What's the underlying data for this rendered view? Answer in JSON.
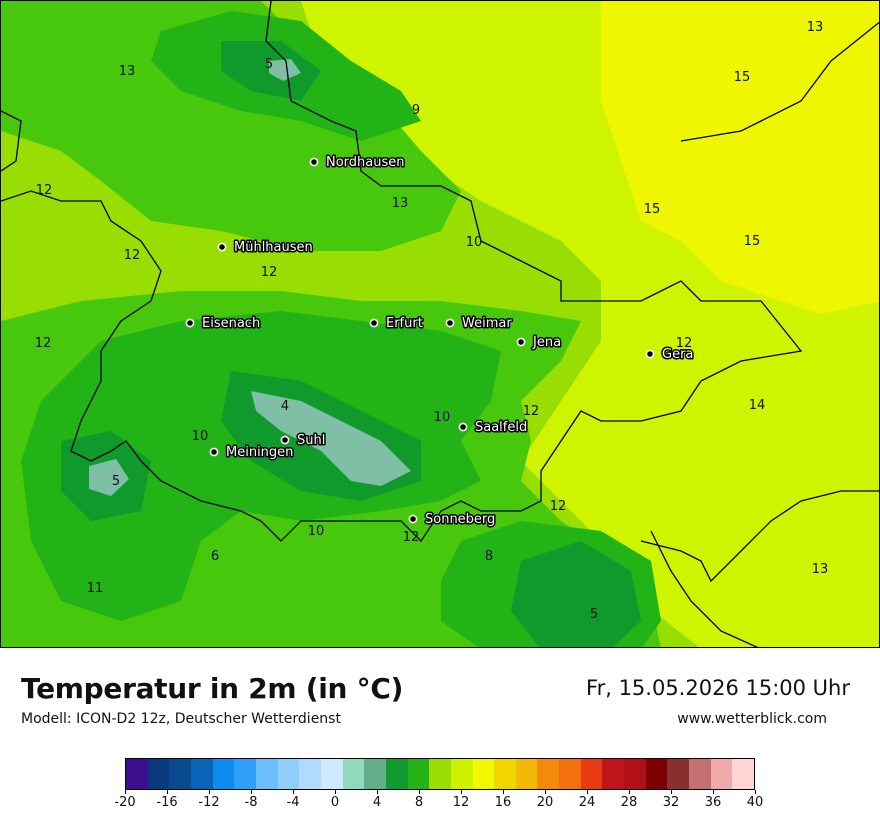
{
  "map": {
    "colors": {
      "c6": "#0f9a2b",
      "c8": "#22b316",
      "c10": "#48c80c",
      "c12": "#98de02",
      "c14": "#cff400",
      "c16": "#eef600",
      "c2": "#7fbfa6",
      "border": "#000000"
    },
    "cities": [
      {
        "name": "Nordhausen"
      },
      {
        "name": "Mühlhausen"
      },
      {
        "name": "Eisenach"
      },
      {
        "name": "Erfurt"
      },
      {
        "name": "Weimar"
      },
      {
        "name": "Jena"
      },
      {
        "name": "Gera"
      },
      {
        "name": "Saalfeld"
      },
      {
        "name": "Suhl"
      },
      {
        "name": "Meiningen"
      },
      {
        "name": "Sonneberg"
      }
    ],
    "isotherm_labels": [
      {
        "text": "13"
      },
      {
        "text": "5"
      },
      {
        "text": "9"
      },
      {
        "text": "13"
      },
      {
        "text": "15"
      },
      {
        "text": "12"
      },
      {
        "text": "13"
      },
      {
        "text": "15"
      },
      {
        "text": "12"
      },
      {
        "text": "10"
      },
      {
        "text": "15"
      },
      {
        "text": "12"
      },
      {
        "text": "12"
      },
      {
        "text": "12"
      },
      {
        "text": "4"
      },
      {
        "text": "14"
      },
      {
        "text": "10"
      },
      {
        "text": "12"
      },
      {
        "text": "10"
      },
      {
        "text": "5"
      },
      {
        "text": "12"
      },
      {
        "text": "10"
      },
      {
        "text": "12"
      },
      {
        "text": "6"
      },
      {
        "text": "8"
      },
      {
        "text": "13"
      },
      {
        "text": "11"
      },
      {
        "text": "5"
      }
    ]
  },
  "footer": {
    "title": "Temperatur in 2m (in °C)",
    "subtitle": "Modell: ICON-D2 12z, Deutscher Wetterdienst",
    "datetime": "Fr, 15.05.2026 15:00 Uhr",
    "website": "www.wetterblick.com"
  },
  "legend": {
    "colors": [
      "#3a0e8c",
      "#0a3a7e",
      "#0b4a8e",
      "#0a64b8",
      "#0f8cf0",
      "#2f9ff8",
      "#6dbdfa",
      "#8fcdfb",
      "#b1dbfc",
      "#cfe8fd",
      "#8fd9bd",
      "#62ae8b",
      "#119a2f",
      "#25b217",
      "#9bdc04",
      "#cdf300",
      "#f1f800",
      "#f2d600",
      "#f3b806",
      "#f38a0b",
      "#f2700f",
      "#e83a10",
      "#c0141c",
      "#b01018",
      "#7e0000",
      "#8a2f2f",
      "#c47070",
      "#f0aaaa",
      "#ffd4d4"
    ],
    "ticks": [
      "-20",
      "-16",
      "-12",
      "-8",
      "-4",
      "0",
      "4",
      "8",
      "12",
      "16",
      "20",
      "24",
      "28",
      "32",
      "36",
      "40"
    ]
  }
}
